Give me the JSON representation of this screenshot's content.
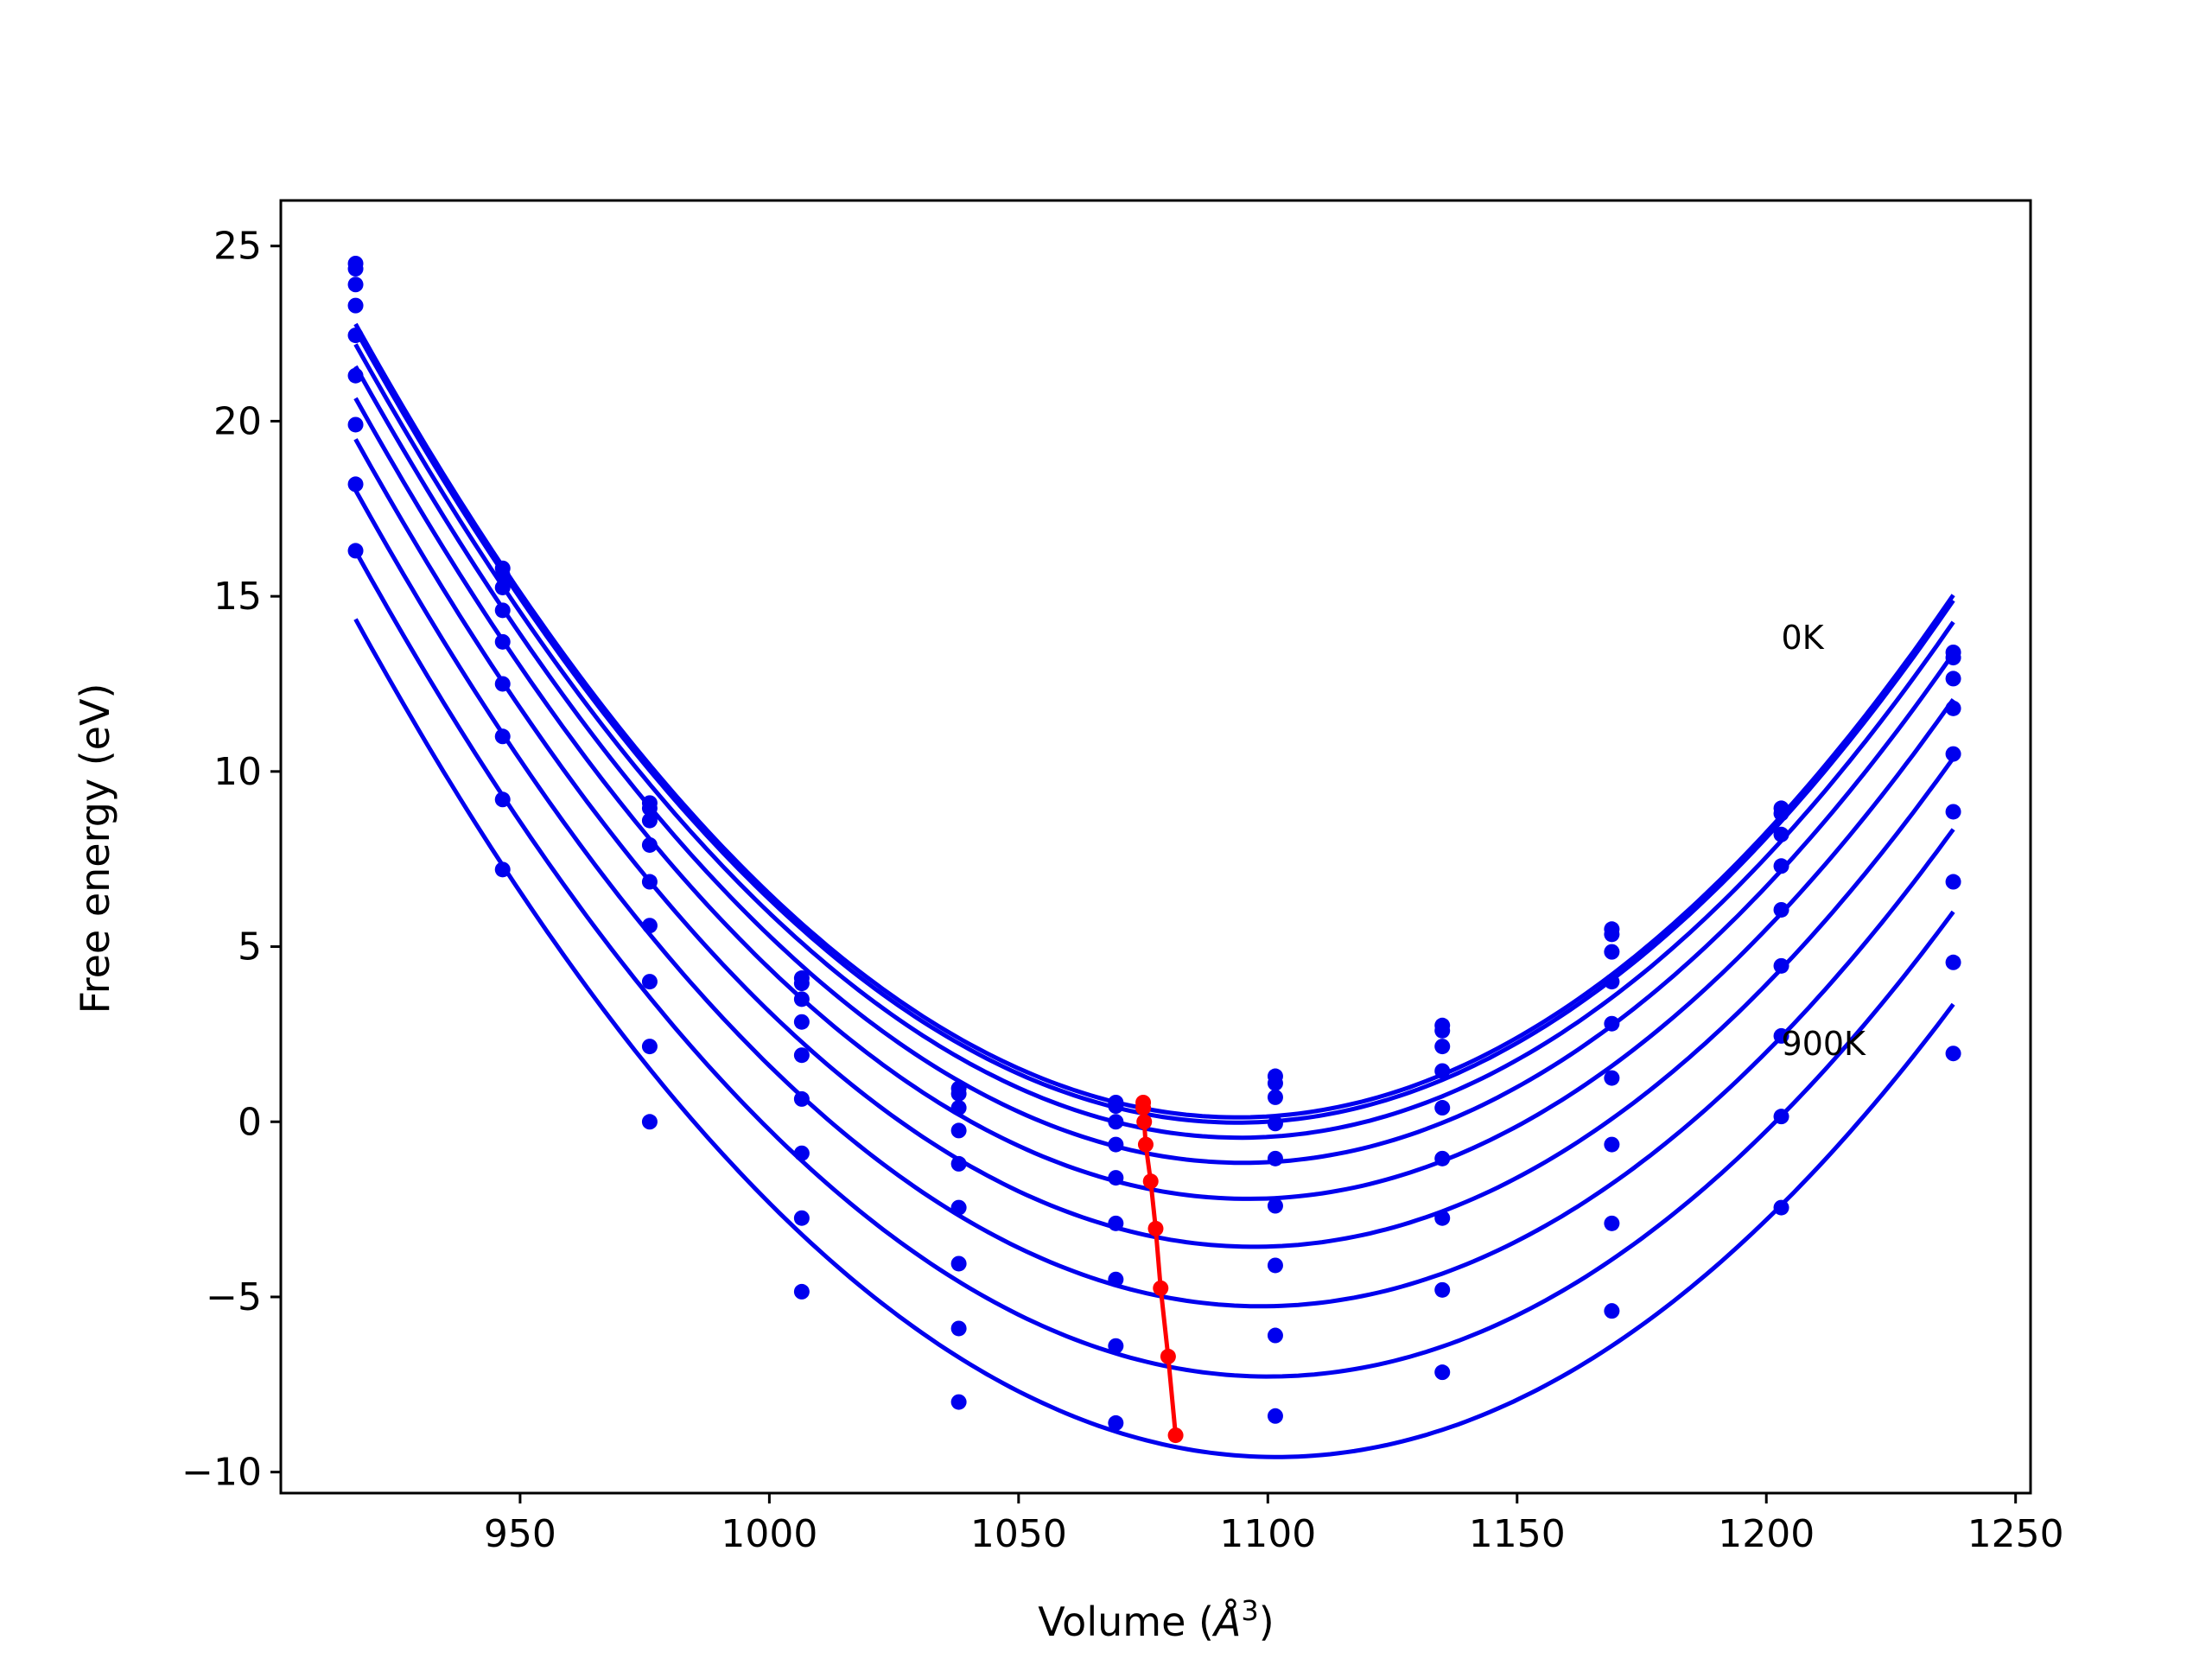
{
  "chart_data": {
    "type": "line",
    "xlabel": "Volume (",
    "xlabel_unit": "Å",
    "xlabel_exp": "3",
    "xlabel_close": ")",
    "ylabel": "Free energy (eV)",
    "xlim": [
      902,
      1253
    ],
    "ylim": [
      -10.6,
      26.3
    ],
    "xticks": [
      950,
      1000,
      1050,
      1100,
      1150,
      1200,
      1250
    ],
    "yticks": [
      -10,
      -5,
      0,
      5,
      10,
      15,
      20,
      25
    ],
    "ytick_labels": [
      "−10",
      "−5",
      "0",
      "5",
      "10",
      "15",
      "20",
      "25"
    ],
    "grid": false,
    "curve_color": "#0000ee",
    "min_line_color": "#ff0000",
    "annotations": [
      {
        "text": "0K",
        "x": 1203,
        "y": 13.5
      },
      {
        "text": "900K",
        "x": 1203,
        "y": 1.9
      }
    ],
    "volumes": [
      917,
      946.5,
      976,
      1006.5,
      1038,
      1069.5,
      1101.5,
      1135,
      1169,
      1203,
      1237.5
    ],
    "series": [
      {
        "values": [
          24.5,
          15.8,
          9.1,
          4.1,
          0.95,
          0.55,
          1.3,
          2.75,
          5.5,
          8.95,
          13.4
        ],
        "min_v": 1075,
        "min_f": 0.55
      },
      {
        "values": [
          24.35,
          15.6,
          8.95,
          3.95,
          0.8,
          0.45,
          1.1,
          2.6,
          5.35,
          8.8,
          13.25
        ],
        "min_v": 1075,
        "min_f": 0.4
      },
      {
        "values": [
          23.9,
          15.25,
          8.6,
          3.5,
          0.4,
          0.0,
          0.7,
          2.15,
          4.85,
          8.2,
          12.65
        ],
        "min_v": 1075.2,
        "min_f": 0.0
      },
      {
        "values": [
          23.3,
          14.6,
          7.9,
          2.85,
          -0.25,
          -0.65,
          -0.05,
          1.45,
          4.0,
          7.3,
          11.8
        ],
        "min_v": 1075.5,
        "min_f": -0.65
      },
      {
        "values": [
          22.45,
          13.7,
          6.85,
          1.9,
          -1.2,
          -1.6,
          -1.05,
          0.4,
          2.8,
          6.05,
          10.5
        ],
        "min_v": 1076.5,
        "min_f": -1.7
      },
      {
        "values": [
          21.3,
          12.5,
          5.6,
          0.65,
          -2.45,
          -2.9,
          -2.4,
          -1.05,
          1.25,
          4.45,
          8.85
        ],
        "min_v": 1077.5,
        "min_f": -3.05
      },
      {
        "values": [
          19.9,
          11.0,
          4.0,
          -0.9,
          -4.05,
          -4.5,
          -4.1,
          -2.75,
          -0.65,
          2.45,
          6.85
        ],
        "min_v": 1078.5,
        "min_f": -4.75
      },
      {
        "values": [
          18.2,
          9.2,
          2.15,
          -2.75,
          -5.9,
          -6.4,
          -6.1,
          -4.8,
          -2.9,
          0.15,
          4.55
        ],
        "min_v": 1080,
        "min_f": -6.7
      },
      {
        "values": [
          16.3,
          7.2,
          0.0,
          -4.85,
          -8.0,
          -8.6,
          -8.4,
          -7.15,
          -5.4,
          -2.45,
          1.95
        ],
        "min_v": 1081.5,
        "min_f": -8.95
      }
    ]
  }
}
